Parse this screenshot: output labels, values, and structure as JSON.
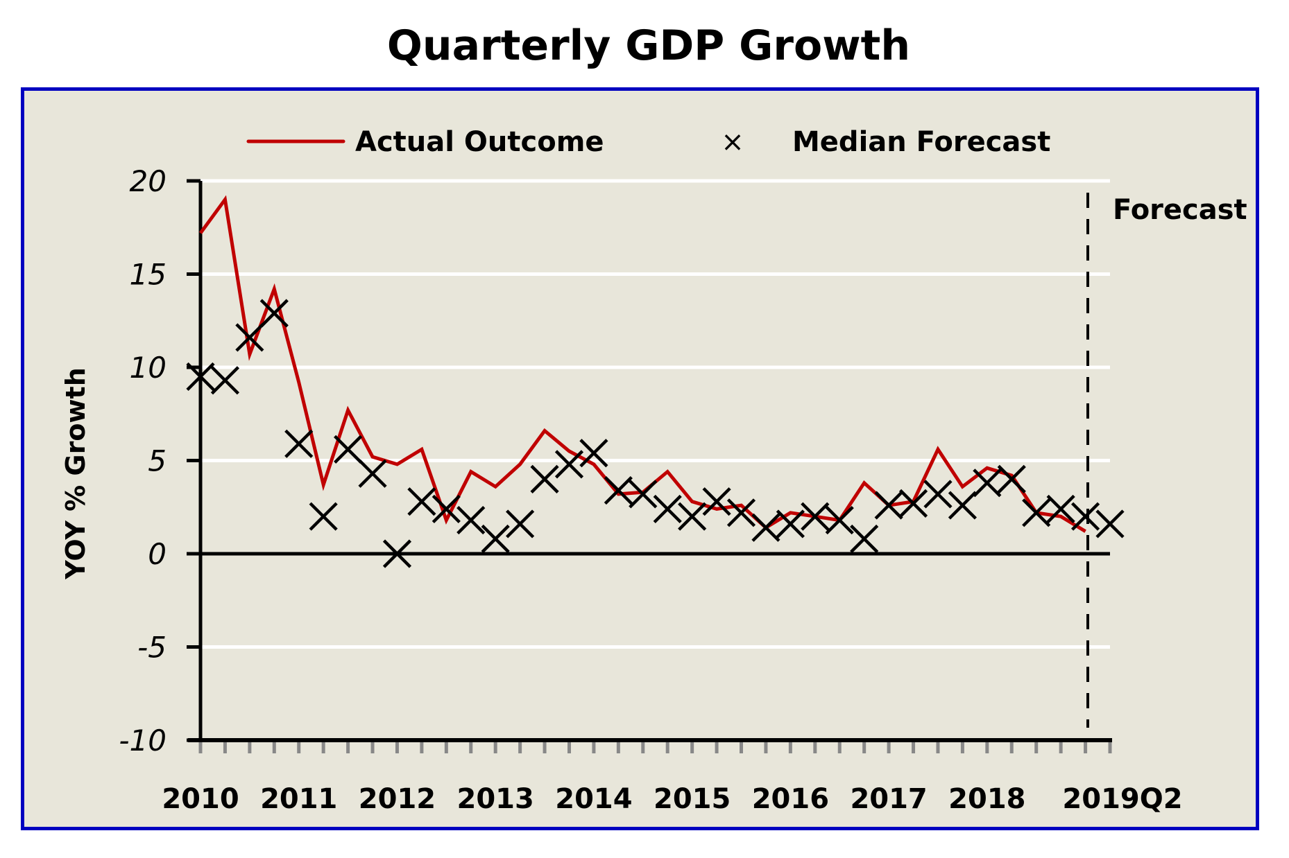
{
  "chart_data": {
    "type": "line",
    "title": "Quarterly GDP Growth",
    "xlabel": "",
    "ylabel": "YOY % Growth",
    "ylim": [
      -10,
      20
    ],
    "yticks": [
      20,
      15,
      10,
      5,
      0,
      -5,
      -10
    ],
    "ytick_labels": [
      "20",
      "15",
      "10",
      "5",
      "0",
      "-5",
      "-10"
    ],
    "grid": true,
    "legend_position": "top",
    "x_start": "2010Q1",
    "x_end": "2019Q2",
    "x_tick_labels": [
      "2010",
      "2011",
      "2012",
      "2013",
      "2014",
      "2015",
      "2016",
      "2017",
      "2018",
      "2019Q2"
    ],
    "x": [
      "2010Q1",
      "2010Q2",
      "2010Q3",
      "2010Q4",
      "2011Q1",
      "2011Q2",
      "2011Q3",
      "2011Q4",
      "2012Q1",
      "2012Q2",
      "2012Q3",
      "2012Q4",
      "2013Q1",
      "2013Q2",
      "2013Q3",
      "2013Q4",
      "2014Q1",
      "2014Q2",
      "2014Q3",
      "2014Q4",
      "2015Q1",
      "2015Q2",
      "2015Q3",
      "2015Q4",
      "2016Q1",
      "2016Q2",
      "2016Q3",
      "2016Q4",
      "2017Q1",
      "2017Q2",
      "2017Q3",
      "2017Q4",
      "2018Q1",
      "2018Q2",
      "2018Q3",
      "2018Q4",
      "2019Q1",
      "2019Q2"
    ],
    "series": [
      {
        "name": "Actual Outcome",
        "style": "line",
        "color": "#c00000",
        "values": [
          17.2,
          19.0,
          10.7,
          14.2,
          9.2,
          3.7,
          7.7,
          5.2,
          4.8,
          5.6,
          1.8,
          4.4,
          3.6,
          4.8,
          6.6,
          5.5,
          4.8,
          3.2,
          3.3,
          4.4,
          2.8,
          2.4,
          2.6,
          1.4,
          2.2,
          2.0,
          1.8,
          3.8,
          2.6,
          2.8,
          5.6,
          3.6,
          4.6,
          4.2,
          2.2,
          2.0,
          1.2,
          null
        ]
      },
      {
        "name": "Median Forecast",
        "style": "marker-x",
        "color": "#000000",
        "values": [
          9.5,
          9.3,
          11.6,
          12.9,
          5.9,
          2.0,
          5.6,
          4.3,
          0.0,
          2.8,
          2.4,
          1.8,
          0.8,
          1.6,
          4.0,
          4.8,
          5.4,
          3.4,
          3.2,
          2.4,
          2.0,
          2.8,
          2.2,
          1.4,
          1.6,
          2.0,
          1.8,
          0.8,
          2.6,
          2.7,
          3.2,
          2.6,
          3.8,
          4.0,
          2.2,
          2.4,
          2.0,
          1.6
        ]
      }
    ],
    "annotations": [
      {
        "text": "Forecast",
        "type": "vertical-dashed-line",
        "at": "2019Q1"
      }
    ]
  },
  "legend": {
    "actual_label": "Actual Outcome",
    "forecast_label": "Median Forecast",
    "forecast_marker": "×"
  },
  "colors": {
    "frame_border": "#0000c0",
    "plot_background": "#e8e6da",
    "gridline": "#ffffff",
    "actual_line": "#c00000",
    "forecast_marker": "#000000",
    "x_tick": "#888888"
  }
}
